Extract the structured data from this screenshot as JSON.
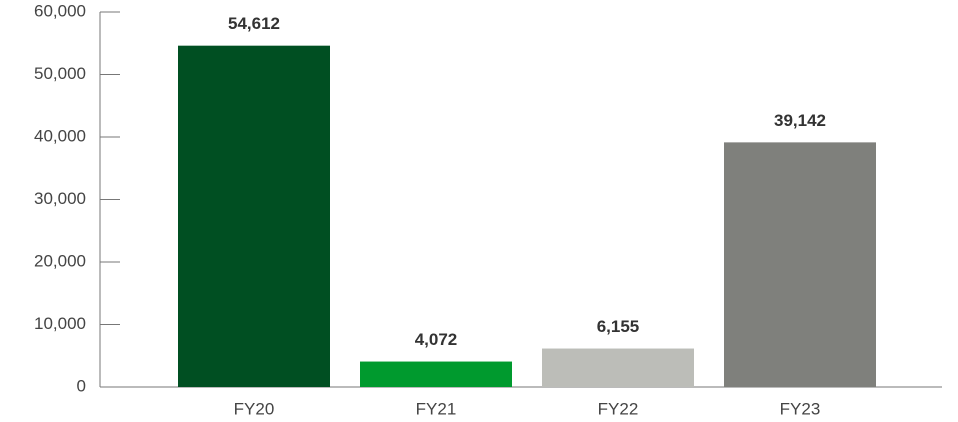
{
  "chart_data": {
    "type": "bar",
    "categories": [
      "FY20",
      "FY21",
      "FY22",
      "FY23"
    ],
    "values": [
      54612,
      4072,
      6155,
      39142
    ],
    "value_labels": [
      "54,612",
      "4,072",
      "6,155",
      "39,142"
    ],
    "colors": [
      "#004f22",
      "#009a2e",
      "#bcbdb8",
      "#7f807c"
    ],
    "ylim": [
      0,
      60000
    ],
    "yticks": [
      0,
      {
        "value": 10000,
        "label": "10,000"
      },
      {
        "value": 20000,
        "label": "20,000"
      },
      {
        "value": 30000,
        "label": "30,000"
      },
      {
        "value": 40000,
        "label": "40,000"
      },
      {
        "value": 50000,
        "label": "50,000"
      },
      {
        "value": 60000,
        "label": "60,000"
      }
    ],
    "grid": false
  }
}
